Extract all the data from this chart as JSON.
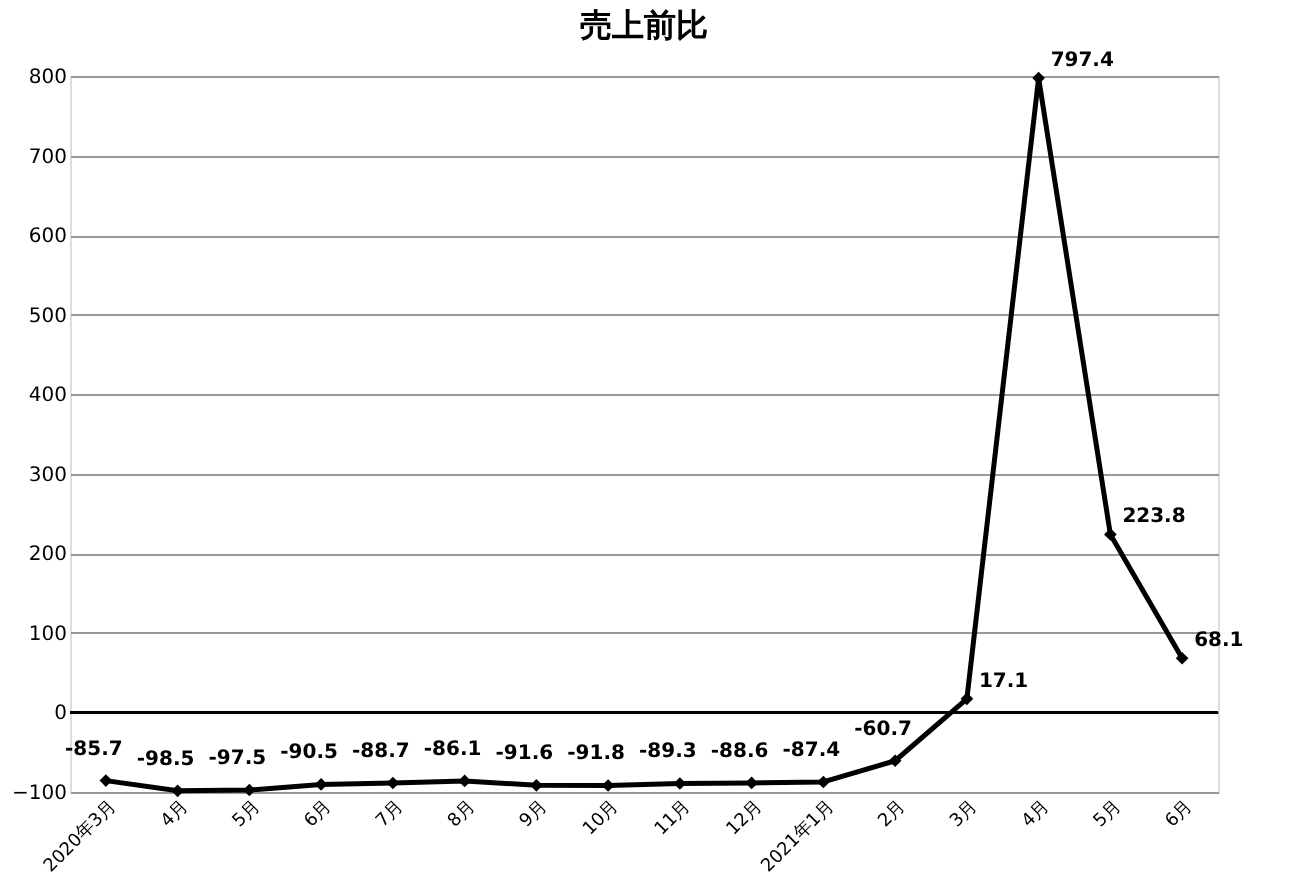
{
  "chart_data": {
    "type": "line",
    "title": "売上前比",
    "categories": [
      "2020年3月",
      "4月",
      "5月",
      "6月",
      "7月",
      "8月",
      "9月",
      "10月",
      "11月",
      "12月",
      "2021年1月",
      "2月",
      "3月",
      "4月",
      "5月",
      "6月"
    ],
    "series": [
      {
        "color": "#000000",
        "values": [
          -85.7,
          -98.5,
          -97.5,
          -90.5,
          -88.7,
          -86.1,
          -91.6,
          -91.8,
          -89.3,
          -88.6,
          -87.4,
          -60.7,
          17.1,
          797.4,
          223.8,
          68.1
        ]
      }
    ],
    "ylim": [
      -100,
      800
    ],
    "yticks": [
      -100,
      0,
      100,
      200,
      300,
      400,
      500,
      600,
      700,
      800
    ],
    "grid": "y",
    "marker": "diamond",
    "line_style": "solid",
    "data_labels": true,
    "ref_lines": [
      {
        "axis": "y",
        "value": 0,
        "color": "#000000"
      }
    ]
  }
}
